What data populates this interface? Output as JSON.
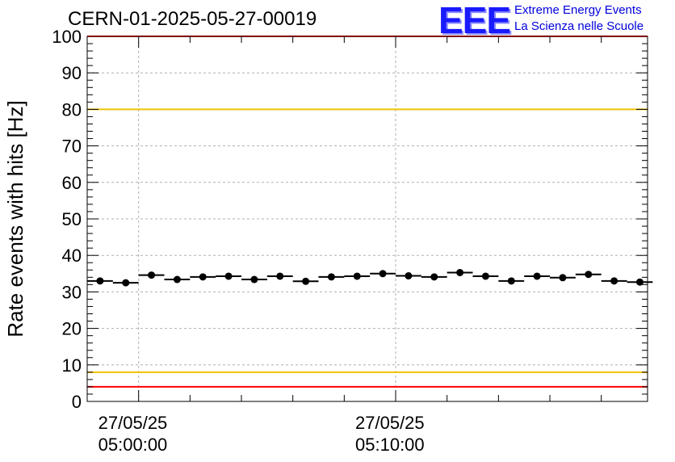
{
  "title": "CERN-01-2025-05-27-00019",
  "logo": {
    "mark": "EEE",
    "line1": "Extreme Energy Events",
    "line2": "La Scienza nelle Scuole"
  },
  "colors": {
    "red_line": "#ff0000",
    "yellow_line": "#f2c200",
    "logo": "#1a1aff"
  },
  "chart_data": {
    "type": "scatter",
    "title": "CERN-01-2025-05-27-00019",
    "xlabel": "",
    "ylabel": "Rate events with hits [Hz]",
    "ylim": [
      0,
      100
    ],
    "yticks": [
      0,
      10,
      20,
      30,
      40,
      50,
      60,
      70,
      80,
      90,
      100
    ],
    "grid": true,
    "x_minutes_range": [
      -2.0,
      19.8
    ],
    "x_major_ticks": [
      {
        "minutes": 0,
        "date": "27/05/25",
        "time": "05:00:00"
      },
      {
        "minutes": 10,
        "date": "27/05/25",
        "time": "05:10:00"
      }
    ],
    "bin_width_minutes": 1,
    "series": [
      {
        "name": "rate",
        "x_minutes": [
          -1.5,
          -0.5,
          0.5,
          1.5,
          2.5,
          3.5,
          4.5,
          5.5,
          6.5,
          7.5,
          8.5,
          9.5,
          10.5,
          11.5,
          12.5,
          13.5,
          14.5,
          15.5,
          16.5,
          17.5,
          18.5,
          19.5
        ],
        "values": [
          33.0,
          32.5,
          34.6,
          33.4,
          34.1,
          34.3,
          33.4,
          34.3,
          32.9,
          34.1,
          34.3,
          35.0,
          34.4,
          34.1,
          35.3,
          34.3,
          33.0,
          34.3,
          33.9,
          34.8,
          33.0,
          32.7
        ]
      }
    ],
    "reference_lines": [
      {
        "value": 100,
        "color": "red"
      },
      {
        "value": 80,
        "color": "yellow"
      },
      {
        "value": 8,
        "color": "yellow"
      },
      {
        "value": 4,
        "color": "red"
      }
    ]
  }
}
